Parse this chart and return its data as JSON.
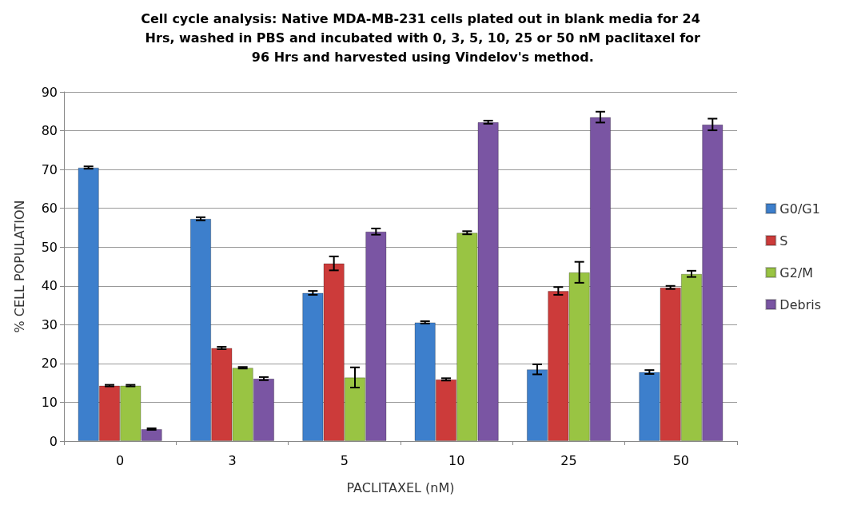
{
  "chart_data": {
    "type": "bar",
    "title": "Cell cycle analysis: Native MDA-MB-231 cells plated out in blank media for 24 Hrs, washed in PBS and incubated with 0, 3, 5, 10, 25 or 50 nM paclitaxel for 96 Hrs and harvested using Vindelov's method.",
    "xlabel": "PACLITAXEL (nM)",
    "ylabel": "% CELL POPULATION",
    "categories": [
      "0",
      "3",
      "5",
      "10",
      "25",
      "50"
    ],
    "series": [
      {
        "name": "G0/G1",
        "color": "#3d7fcc",
        "values": [
          70.5,
          57.3,
          38.2,
          30.6,
          18.5,
          17.8
        ],
        "errors": [
          0.3,
          0.4,
          0.5,
          0.3,
          1.3,
          0.5
        ]
      },
      {
        "name": "S",
        "color": "#cc3b3a",
        "values": [
          14.3,
          24.0,
          45.8,
          15.9,
          38.7,
          39.6
        ],
        "errors": [
          0.2,
          0.3,
          1.8,
          0.3,
          1.0,
          0.4
        ]
      },
      {
        "name": "G2/M",
        "color": "#99c443",
        "values": [
          14.3,
          18.9,
          16.4,
          53.7,
          43.5,
          43.1
        ],
        "errors": [
          0.2,
          0.2,
          2.6,
          0.4,
          2.7,
          0.8
        ]
      },
      {
        "name": "Debris",
        "color": "#7a55a3",
        "values": [
          3.1,
          16.1,
          54.0,
          82.2,
          83.5,
          81.6
        ],
        "errors": [
          0.2,
          0.4,
          0.8,
          0.4,
          1.4,
          1.5
        ]
      }
    ],
    "ylim": [
      0,
      90
    ],
    "yticks": [
      0,
      10,
      20,
      30,
      40,
      50,
      60,
      70,
      80,
      90
    ],
    "grid": "y",
    "legend": "right"
  }
}
